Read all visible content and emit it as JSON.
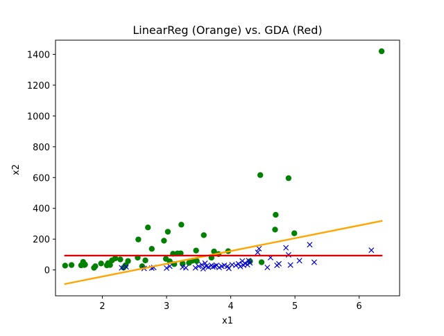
{
  "chart_data": {
    "type": "scatter",
    "title": "LinearReg (Orange) vs. GDA (Red)",
    "xlabel": "x1",
    "ylabel": "x2",
    "xlim": [
      1.27,
      6.63
    ],
    "ylim": [
      -168,
      1492
    ],
    "x_ticks": [
      {
        "value": 2,
        "label": "2"
      },
      {
        "value": 3,
        "label": "3"
      },
      {
        "value": 4,
        "label": "4"
      },
      {
        "value": 5,
        "label": "5"
      },
      {
        "value": 6,
        "label": "6"
      }
    ],
    "y_ticks": [
      {
        "value": 0,
        "label": "0"
      },
      {
        "value": 200,
        "label": "200"
      },
      {
        "value": 400,
        "label": "400"
      },
      {
        "value": 600,
        "label": "600"
      },
      {
        "value": 800,
        "label": "800"
      },
      {
        "value": 1000,
        "label": "1000"
      },
      {
        "value": 1200,
        "label": "1200"
      },
      {
        "value": 1400,
        "label": "1400"
      }
    ],
    "grid": false,
    "legend": "none",
    "series": [
      {
        "marker": "circle",
        "color": "#008000",
        "points": [
          [
            1.42,
            28
          ],
          [
            1.52,
            32
          ],
          [
            1.67,
            30
          ],
          [
            1.7,
            52
          ],
          [
            1.72,
            32
          ],
          [
            1.73,
            35
          ],
          [
            1.87,
            14
          ],
          [
            1.89,
            24
          ],
          [
            1.98,
            42
          ],
          [
            2.07,
            30
          ],
          [
            2.09,
            44
          ],
          [
            2.12,
            32
          ],
          [
            2.15,
            62
          ],
          [
            2.2,
            75
          ],
          [
            2.28,
            68
          ],
          [
            2.33,
            15
          ],
          [
            2.36,
            30
          ],
          [
            2.4,
            58
          ],
          [
            2.55,
            80
          ],
          [
            2.56,
            198
          ],
          [
            2.62,
            24
          ],
          [
            2.67,
            62
          ],
          [
            2.71,
            276
          ],
          [
            2.77,
            137
          ],
          [
            2.96,
            190
          ],
          [
            2.99,
            72
          ],
          [
            3.02,
            248
          ],
          [
            3.05,
            56
          ],
          [
            3.1,
            105
          ],
          [
            3.12,
            38
          ],
          [
            3.17,
            107
          ],
          [
            3.22,
            108
          ],
          [
            3.23,
            294
          ],
          [
            3.25,
            42
          ],
          [
            3.35,
            46
          ],
          [
            3.4,
            60
          ],
          [
            3.46,
            126
          ],
          [
            3.47,
            58
          ],
          [
            3.58,
            226
          ],
          [
            3.7,
            80
          ],
          [
            3.74,
            120
          ],
          [
            3.81,
            103
          ],
          [
            3.96,
            122
          ],
          [
            4.3,
            56
          ],
          [
            4.46,
            616
          ],
          [
            4.48,
            50
          ],
          [
            4.9,
            596
          ],
          [
            4.7,
            358
          ],
          [
            4.69,
            262
          ],
          [
            4.99,
            238
          ],
          [
            6.35,
            1420
          ]
        ]
      },
      {
        "marker": "x",
        "color": "#0000cc",
        "points": [
          [
            2.3,
            14
          ],
          [
            2.37,
            20
          ],
          [
            2.65,
            10
          ],
          [
            2.77,
            12
          ],
          [
            2.8,
            16
          ],
          [
            3.0,
            12
          ],
          [
            3.05,
            24
          ],
          [
            3.25,
            18
          ],
          [
            3.3,
            14
          ],
          [
            3.45,
            14
          ],
          [
            3.5,
            24
          ],
          [
            3.55,
            34
          ],
          [
            3.57,
            8
          ],
          [
            3.6,
            44
          ],
          [
            3.62,
            24
          ],
          [
            3.65,
            18
          ],
          [
            3.7,
            30
          ],
          [
            3.72,
            20
          ],
          [
            3.75,
            24
          ],
          [
            3.78,
            30
          ],
          [
            3.82,
            16
          ],
          [
            3.86,
            24
          ],
          [
            3.9,
            30
          ],
          [
            3.95,
            24
          ],
          [
            3.97,
            10
          ],
          [
            4.02,
            34
          ],
          [
            4.08,
            30
          ],
          [
            4.12,
            40
          ],
          [
            4.15,
            22
          ],
          [
            4.18,
            58
          ],
          [
            4.2,
            30
          ],
          [
            4.22,
            44
          ],
          [
            4.26,
            34
          ],
          [
            4.28,
            60
          ],
          [
            4.3,
            46
          ],
          [
            4.42,
            114
          ],
          [
            4.44,
            138
          ],
          [
            4.57,
            16
          ],
          [
            4.62,
            80
          ],
          [
            4.72,
            30
          ],
          [
            4.75,
            40
          ],
          [
            4.86,
            144
          ],
          [
            4.9,
            98
          ],
          [
            4.93,
            32
          ],
          [
            5.07,
            60
          ],
          [
            5.23,
            164
          ],
          [
            5.3,
            50
          ],
          [
            6.19,
            128
          ]
        ]
      }
    ],
    "lines": [
      {
        "color": "#ffa500",
        "x": [
          1.42,
          6.35
        ],
        "y": [
          -91,
          318
        ]
      },
      {
        "color": "#dd0000",
        "x": [
          1.42,
          6.35
        ],
        "y": [
          93,
          93
        ]
      }
    ]
  }
}
